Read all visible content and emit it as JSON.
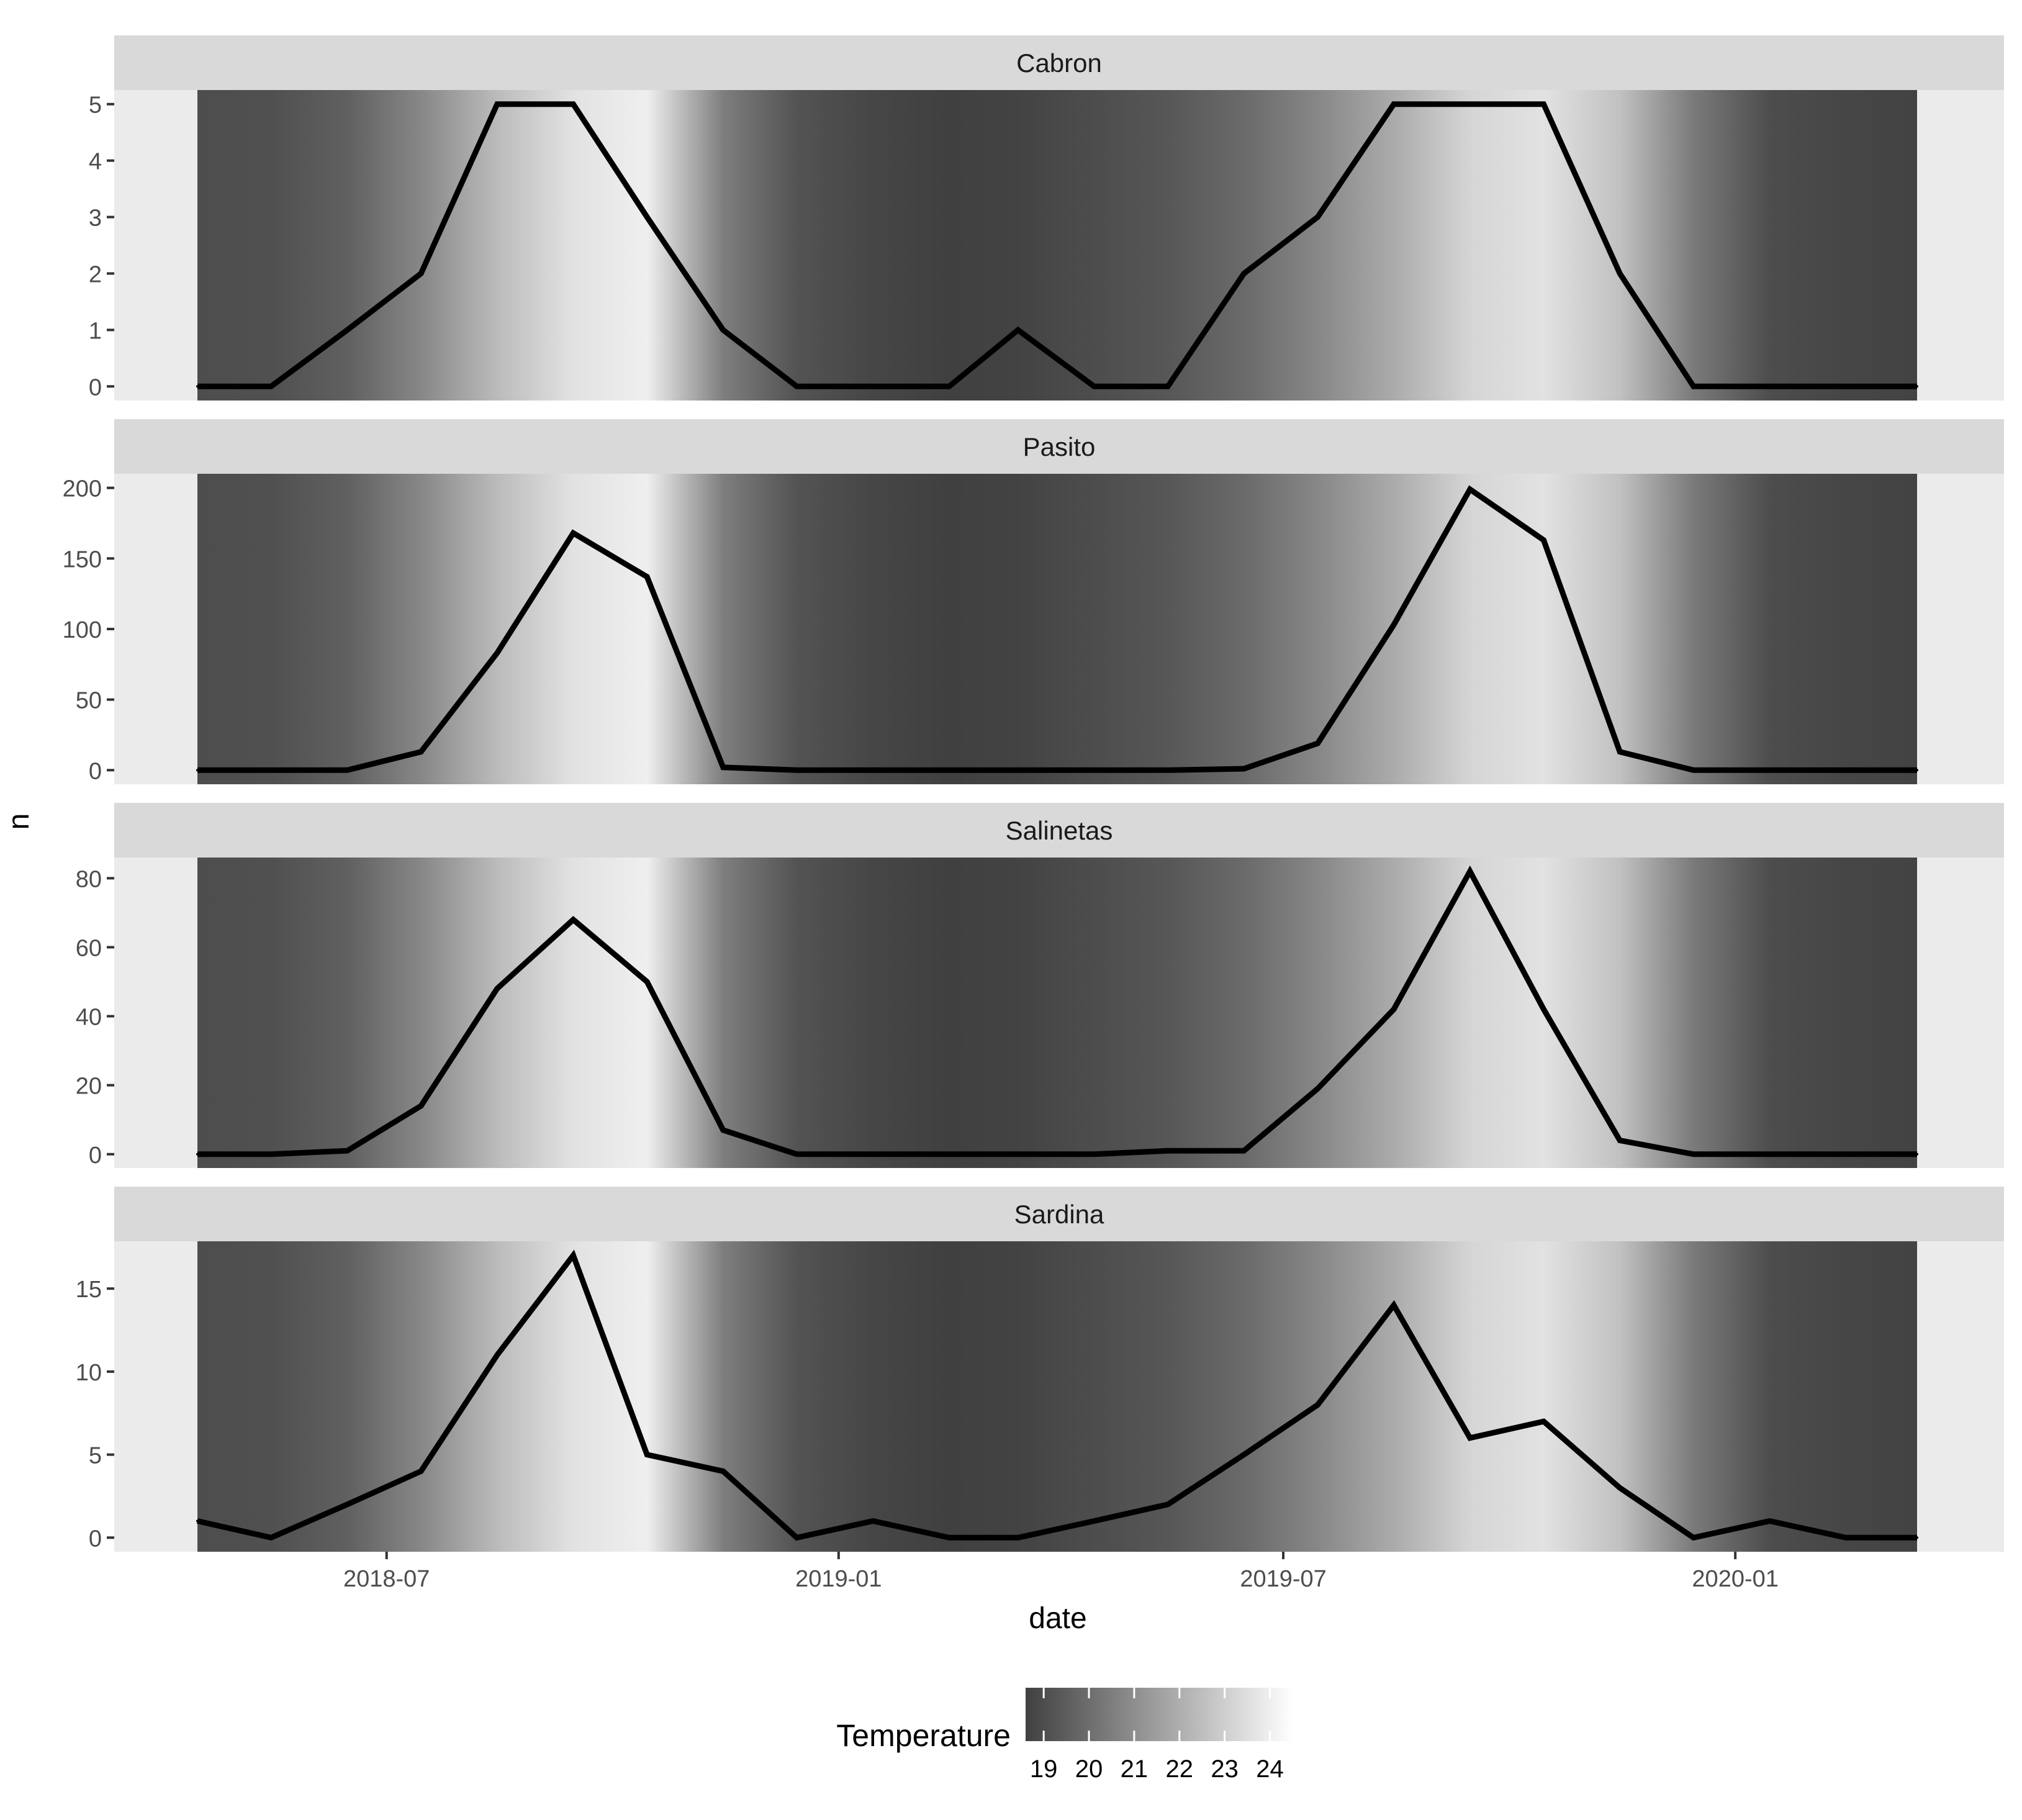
{
  "chart_data": {
    "type": "line",
    "facet_by": "site",
    "xlabel": "date",
    "ylabel": "n",
    "x_ticks": [
      "2018-07",
      "2019-01",
      "2019-07",
      "2020-01"
    ],
    "x": [
      "2018-04-15",
      "2018-05-15",
      "2018-06-15",
      "2018-07-15",
      "2018-08-15",
      "2018-09-15",
      "2018-10-15",
      "2018-11-15",
      "2018-12-15",
      "2019-01-15",
      "2019-02-15",
      "2019-03-15",
      "2019-04-15",
      "2019-05-15",
      "2019-06-15",
      "2019-07-15",
      "2019-08-15",
      "2019-09-15",
      "2019-10-15",
      "2019-11-15",
      "2019-12-15",
      "2020-01-15",
      "2020-02-15",
      "2020-03-15"
    ],
    "fill_variable": "Temperature",
    "temperature": [
      19.0,
      19.1,
      19.6,
      20.8,
      22.4,
      23.6,
      24.0,
      20.5,
      19.2,
      18.8,
      18.6,
      18.7,
      19.0,
      19.3,
      19.9,
      20.8,
      21.9,
      23.2,
      23.6,
      22.6,
      20.4,
      19.0,
      18.8,
      18.7
    ],
    "legend": {
      "title": "Temperature",
      "ticks": [
        "19",
        "20",
        "21",
        "22",
        "23",
        "24"
      ],
      "range": [
        18.6,
        24.5
      ],
      "low_color": "#404040",
      "high_color": "#ffffff",
      "placement": "bottom"
    },
    "line_color": "#000000",
    "panel_background": "#ebebeb",
    "strip_background": "#d9d9d9",
    "panels": [
      {
        "title": "Cabron",
        "y_ticks": [
          0,
          1,
          2,
          3,
          4,
          5
        ],
        "ylim": [
          -0.25,
          5.25
        ],
        "values": [
          0,
          0,
          1,
          2,
          5,
          5,
          3,
          1,
          0,
          0,
          0,
          1,
          0,
          0,
          2,
          3,
          5,
          5,
          5,
          2,
          0,
          0,
          0,
          0
        ]
      },
      {
        "title": "Pasito",
        "y_ticks": [
          0,
          50,
          100,
          150,
          200
        ],
        "ylim": [
          -10,
          210
        ],
        "values": [
          0,
          0,
          0,
          13,
          83,
          168,
          137,
          2,
          0,
          0,
          0,
          0,
          0,
          0,
          1,
          19,
          103,
          199,
          163,
          13,
          0,
          0,
          0,
          0
        ]
      },
      {
        "title": "Salinetas",
        "y_ticks": [
          0,
          20,
          40,
          60,
          80
        ],
        "ylim": [
          -4,
          86
        ],
        "values": [
          0,
          0,
          1,
          14,
          48,
          68,
          50,
          7,
          0,
          0,
          0,
          0,
          0,
          1,
          1,
          19,
          42,
          82,
          42,
          4,
          0,
          0,
          0,
          0
        ]
      },
      {
        "title": "Sardina",
        "y_ticks": [
          0,
          5,
          10,
          15
        ],
        "ylim": [
          -0.85,
          17.85
        ],
        "values": [
          1,
          0,
          2,
          4,
          11,
          17,
          5,
          4,
          0,
          1,
          0,
          0,
          1,
          2,
          5,
          8,
          14,
          6,
          7,
          3,
          0,
          1,
          0,
          0
        ]
      }
    ]
  }
}
